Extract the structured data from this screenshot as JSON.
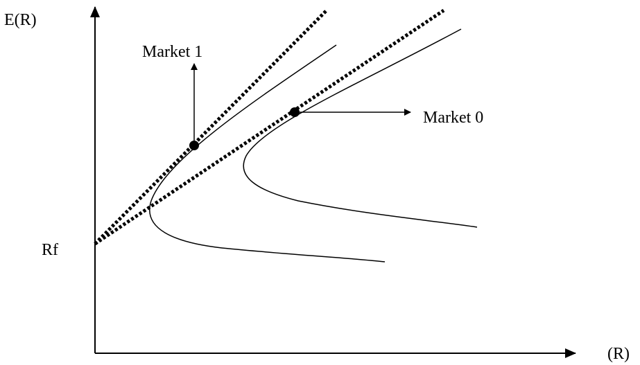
{
  "axes": {
    "y_label": "E(R)",
    "x_label": "(R)",
    "rf_label": "Rf"
  },
  "points": [
    {
      "label": "Market 1"
    },
    {
      "label": "Market 0"
    }
  ]
}
